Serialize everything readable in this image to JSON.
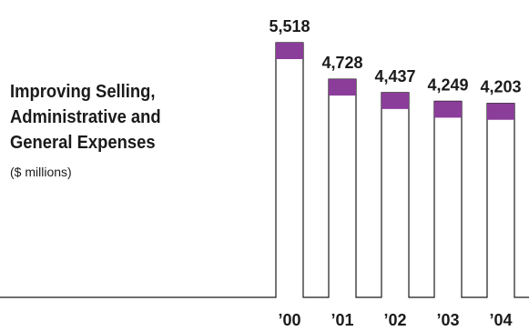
{
  "title_lines": [
    "Improving Selling,",
    "Administrative and",
    "General Expenses"
  ],
  "subtitle": "($ millions)",
  "colors": {
    "bar_cap": "#8b3d9a",
    "bar_outline": "#1a1a1a",
    "bar_fill": "#ffffff",
    "text": "#1a1a1a"
  },
  "chart_data": {
    "type": "bar",
    "categories": [
      "’00",
      "’01",
      "’02",
      "’03",
      "’04"
    ],
    "values": [
      5518,
      4728,
      4437,
      4249,
      4203
    ],
    "value_labels": [
      "5,518",
      "4,728",
      "4,437",
      "4,249",
      "4,203"
    ],
    "title": "Improving Selling, Administrative and General Expenses",
    "ylabel": "($ millions)",
    "xlabel": "",
    "ylim": [
      0,
      5518
    ],
    "grid": false,
    "legend": "none"
  }
}
